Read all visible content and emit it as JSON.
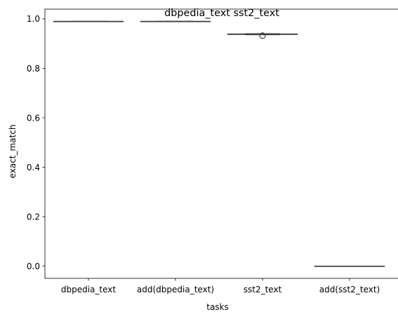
{
  "chart_data": {
    "type": "box",
    "title": "dbpedia_text sst2_text",
    "xlabel": "tasks",
    "ylabel": "exact_match",
    "categories": [
      "dbpedia_text",
      "add(dbpedia_text)",
      "sst2_text",
      "add(sst2_text)"
    ],
    "boxes": [
      {
        "category": "dbpedia_text",
        "whislo": 0.99,
        "q1": 0.99,
        "med": 0.99,
        "q3": 0.99,
        "whishi": 0.99,
        "fliers": []
      },
      {
        "category": "add(dbpedia_text)",
        "whislo": 0.99,
        "q1": 0.99,
        "med": 0.99,
        "q3": 0.99,
        "whishi": 0.99,
        "fliers": []
      },
      {
        "category": "sst2_text",
        "whislo": 0.936,
        "q1": 0.937,
        "med": 0.938,
        "q3": 0.939,
        "whishi": 0.94,
        "fliers": [
          0.932
        ]
      },
      {
        "category": "add(sst2_text)",
        "whislo": 0.0,
        "q1": 0.0,
        "med": 0.0,
        "q3": 0.0,
        "whishi": 0.0,
        "fliers": []
      }
    ],
    "yticks": [
      0.0,
      0.2,
      0.4,
      0.6,
      0.8,
      1.0
    ],
    "ytick_labels": [
      "0.0",
      "0.2",
      "0.4",
      "0.6",
      "0.8",
      "1.0"
    ],
    "ylim": [
      -0.0495,
      1.0395
    ],
    "grid": false,
    "legend": "none",
    "colors": {
      "box_edge": "#3d3d3d",
      "box_fill": "#3274a1",
      "axis": "#000000"
    }
  }
}
